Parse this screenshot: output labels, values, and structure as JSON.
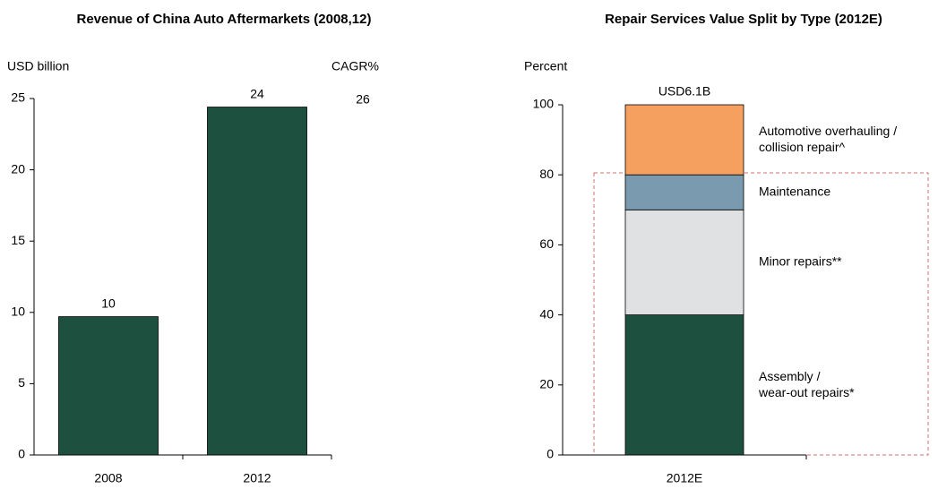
{
  "chart_data": [
    {
      "type": "bar",
      "title": "Revenue of China Auto Aftermarkets (2008,12)",
      "y_label": "USD billion",
      "annotations": [
        "CAGR%",
        "26"
      ],
      "categories": [
        "2008",
        "2012"
      ],
      "values": [
        9.7,
        24.4
      ],
      "value_labels": [
        "10",
        "24"
      ],
      "color": "#1e5040",
      "ylim": [
        0,
        25
      ],
      "yticks": [
        0,
        5,
        10,
        15,
        20,
        25
      ]
    },
    {
      "type": "stacked_bar",
      "title": "Repair Services Value Split by Type (2012E)",
      "y_label": "Percent",
      "annotations": [
        "USD6.1B"
      ],
      "categories": [
        "2012E"
      ],
      "series": [
        {
          "name": "Assembly /\nwear-out repairs*",
          "color": "#1e5040",
          "values": [
            40
          ]
        },
        {
          "name": "Minor repairs**",
          "color": "#e0e1e3",
          "values": [
            30
          ]
        },
        {
          "name": "Maintenance",
          "color": "#7a9aaf",
          "values": [
            10
          ]
        },
        {
          "name": "Automotive overhauling /\ncollision repair^",
          "color": "#f5a05f",
          "values": [
            20
          ]
        }
      ],
      "ylim": [
        0,
        100
      ],
      "yticks": [
        0,
        20,
        40,
        60,
        80,
        100
      ]
    }
  ]
}
